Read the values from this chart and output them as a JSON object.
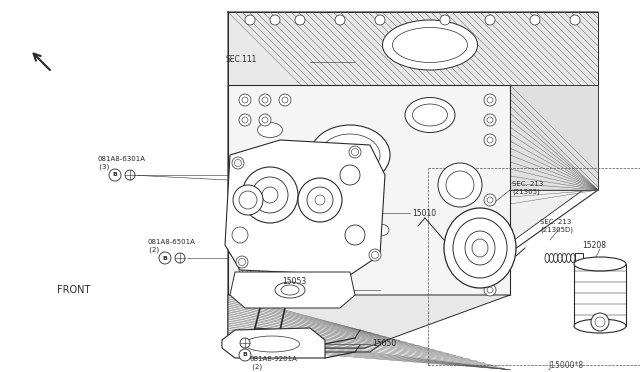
{
  "bg_color": "#ffffff",
  "line_color": "#2a2a2a",
  "fig_width": 6.4,
  "fig_height": 3.72,
  "dpi": 100,
  "labels": {
    "sec111": "SEC.111",
    "sec213_a": "SEC. 213\n(21305)",
    "sec213_b": "SEC. 213\n(21305D)",
    "part_15010": "15010",
    "part_15053": "15053",
    "part_15050": "15050",
    "part_15208": "15208",
    "bolt_630": "081A8-6301A\n (3)",
    "bolt_650": "081A8-6501A\n (2)",
    "bolt_920": "081A8-9201A\n (2)",
    "front": "FRONT",
    "fig_num": "J15000*8"
  },
  "font_size_small": 5.0,
  "font_size_medium": 7,
  "lw_main": 0.7,
  "lw_thin": 0.4
}
